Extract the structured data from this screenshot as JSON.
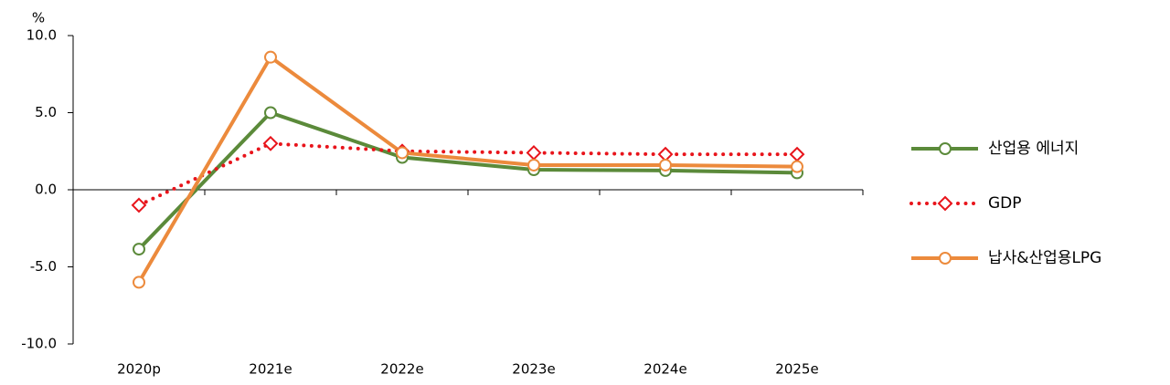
{
  "chart_data": {
    "type": "line",
    "y_unit": "%",
    "categories": [
      "2020p",
      "2021e",
      "2022e",
      "2023e",
      "2024e",
      "2025e"
    ],
    "ylim": [
      -10,
      10
    ],
    "yticks": [
      {
        "value": -10,
        "label": "-10.0"
      },
      {
        "value": -5,
        "label": "-5.0"
      },
      {
        "value": 0,
        "label": "0.0"
      },
      {
        "value": 5,
        "label": "5.0"
      },
      {
        "value": 10,
        "label": "10.0"
      }
    ],
    "legend": "right",
    "series": [
      {
        "name": "산업용 에너지",
        "color": "#5b8a3a",
        "line_style": "solid",
        "marker": "circle",
        "values": [
          -3.85,
          5.0,
          2.1,
          1.3,
          1.25,
          1.1
        ]
      },
      {
        "name": "GDP",
        "color": "#e8141b",
        "line_style": "dotted",
        "marker": "diamond",
        "values": [
          -1.0,
          3.0,
          2.5,
          2.4,
          2.3,
          2.3
        ]
      },
      {
        "name": "납사&산업용LPG",
        "color": "#ec8a3c",
        "line_style": "solid",
        "marker": "circle",
        "values": [
          -6.0,
          8.6,
          2.4,
          1.6,
          1.6,
          1.5
        ]
      }
    ]
  }
}
